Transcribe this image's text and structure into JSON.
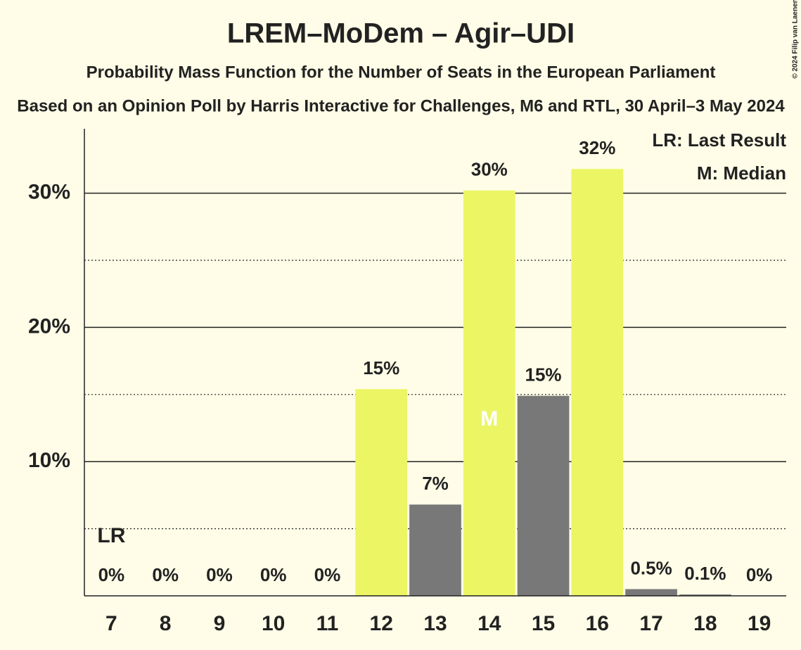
{
  "chart_data": {
    "type": "bar",
    "title": "LREM–MoDem – Agir–UDI",
    "subtitle": "Probability Mass Function for the Number of Seats in the European Parliament",
    "subtitle2": "Based on an Opinion Poll by Harris Interactive for Challenges, M6 and RTL, 30 April–3 May 2024",
    "copyright": "© 2024 Filip van Laenen",
    "categories": [
      "7",
      "8",
      "9",
      "10",
      "11",
      "12",
      "13",
      "14",
      "15",
      "16",
      "17",
      "18",
      "19"
    ],
    "values": [
      0,
      0,
      0,
      0,
      0,
      15.4,
      6.8,
      30.2,
      14.9,
      31.8,
      0.5,
      0.1,
      0
    ],
    "value_labels": [
      "0%",
      "0%",
      "0%",
      "0%",
      "0%",
      "15%",
      "7%",
      "30%",
      "15%",
      "32%",
      "0.5%",
      "0.1%",
      "0%"
    ],
    "colors": [
      "#787878",
      "#787878",
      "#787878",
      "#787878",
      "#787878",
      "#ecf564",
      "#787878",
      "#ecf564",
      "#787878",
      "#ecf564",
      "#787878",
      "#787878",
      "#787878"
    ],
    "ylim": [
      0,
      34.8
    ],
    "yticks": [
      {
        "value": 10,
        "label": "10%"
      },
      {
        "value": 20,
        "label": "20%"
      },
      {
        "value": 30,
        "label": "30%"
      }
    ],
    "minor_yticks": [
      5,
      15,
      25
    ],
    "grid": true,
    "annotations": [
      {
        "text": "LR",
        "at": "7",
        "kind": "last-result"
      },
      {
        "text": "M",
        "at": "14",
        "kind": "median"
      }
    ],
    "legend": [
      "LR: Last Result",
      "M: Median"
    ],
    "legend_position": "upper right"
  }
}
